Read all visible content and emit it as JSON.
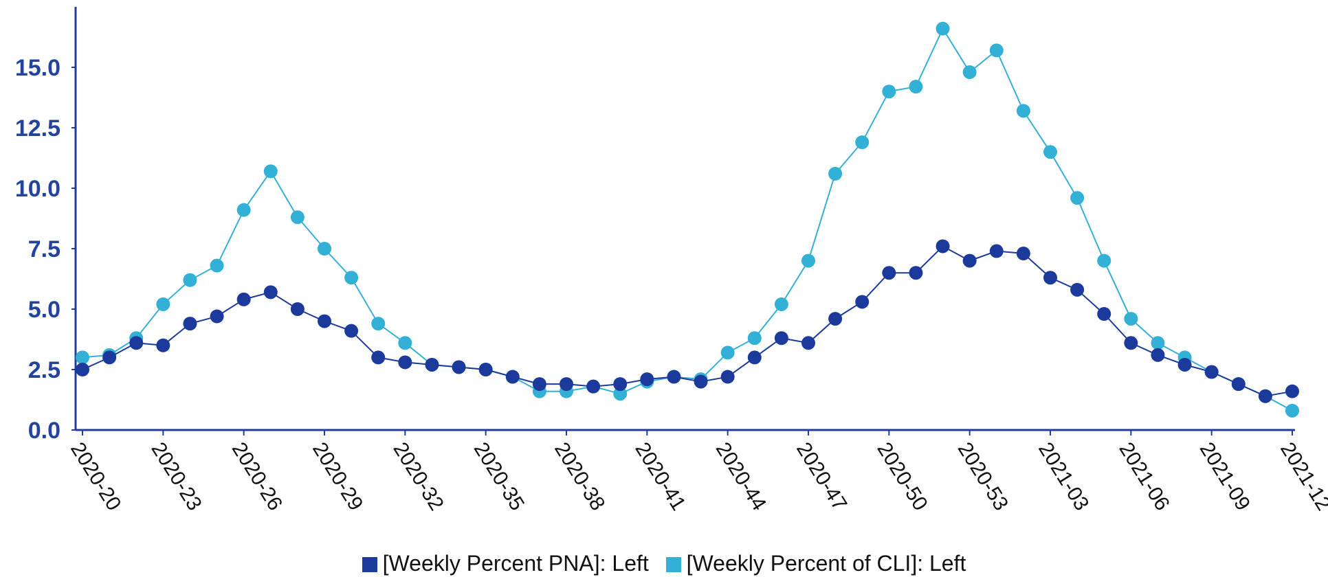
{
  "colors": {
    "axis": "#1f3c9c",
    "tick_text": "#23449e",
    "pna": "#1b3a9c",
    "cli": "#33b0d6"
  },
  "chart_data": {
    "type": "line",
    "x": [
      "2020-20",
      "2020-21",
      "2020-22",
      "2020-23",
      "2020-24",
      "2020-25",
      "2020-26",
      "2020-27",
      "2020-28",
      "2020-29",
      "2020-30",
      "2020-31",
      "2020-32",
      "2020-33",
      "2020-34",
      "2020-35",
      "2020-36",
      "2020-37",
      "2020-38",
      "2020-39",
      "2020-40",
      "2020-41",
      "2020-42",
      "2020-43",
      "2020-44",
      "2020-45",
      "2020-46",
      "2020-47",
      "2020-48",
      "2020-49",
      "2020-50",
      "2020-51",
      "2020-52",
      "2020-53",
      "2021-01",
      "2021-02",
      "2021-03",
      "2021-04",
      "2021-05",
      "2021-06",
      "2021-07",
      "2021-08",
      "2021-09",
      "2021-10",
      "2021-11",
      "2021-12"
    ],
    "x_tick_labels": [
      "2020-20",
      "2020-23",
      "2020-26",
      "2020-29",
      "2020-32",
      "2020-35",
      "2020-38",
      "2020-41",
      "2020-44",
      "2020-47",
      "2020-50",
      "2020-53",
      "2021-03",
      "2021-06",
      "2021-09",
      "2021-12"
    ],
    "series": [
      {
        "name": "[Weekly Percent PNA]: Left",
        "color": "#1b3a9c",
        "values": [
          2.5,
          3.0,
          3.6,
          3.5,
          4.4,
          4.7,
          5.4,
          5.7,
          5.0,
          4.5,
          4.1,
          3.0,
          2.8,
          2.7,
          2.6,
          2.5,
          2.2,
          1.9,
          1.9,
          1.8,
          1.9,
          2.1,
          2.2,
          2.0,
          2.2,
          3.0,
          3.8,
          3.6,
          4.6,
          5.3,
          6.5,
          6.5,
          7.6,
          7.0,
          7.4,
          7.3,
          6.3,
          5.8,
          4.8,
          3.6,
          3.1,
          2.7,
          2.4,
          1.9,
          1.4,
          1.6
        ]
      },
      {
        "name": "[Weekly Percent of CLI]: Left",
        "color": "#33b0d6",
        "values": [
          3.0,
          3.1,
          3.8,
          5.2,
          6.2,
          6.8,
          9.1,
          10.7,
          8.8,
          7.5,
          6.3,
          4.4,
          3.6,
          2.7,
          2.6,
          2.5,
          2.2,
          1.6,
          1.6,
          1.8,
          1.5,
          2.0,
          2.2,
          2.1,
          3.2,
          3.8,
          5.2,
          7.0,
          10.6,
          11.9,
          14.0,
          14.2,
          16.6,
          14.8,
          15.7,
          13.2,
          11.5,
          9.6,
          7.0,
          4.6,
          3.6,
          3.0,
          2.4,
          1.9,
          1.4,
          0.8
        ]
      }
    ],
    "yticks": [
      "0.0",
      "2.5",
      "5.0",
      "7.5",
      "10.0",
      "12.5",
      "15.0"
    ],
    "ylim": [
      0,
      17.5
    ],
    "xlabel": "",
    "ylabel": "",
    "grid": false,
    "legend_position": "bottom-center"
  }
}
